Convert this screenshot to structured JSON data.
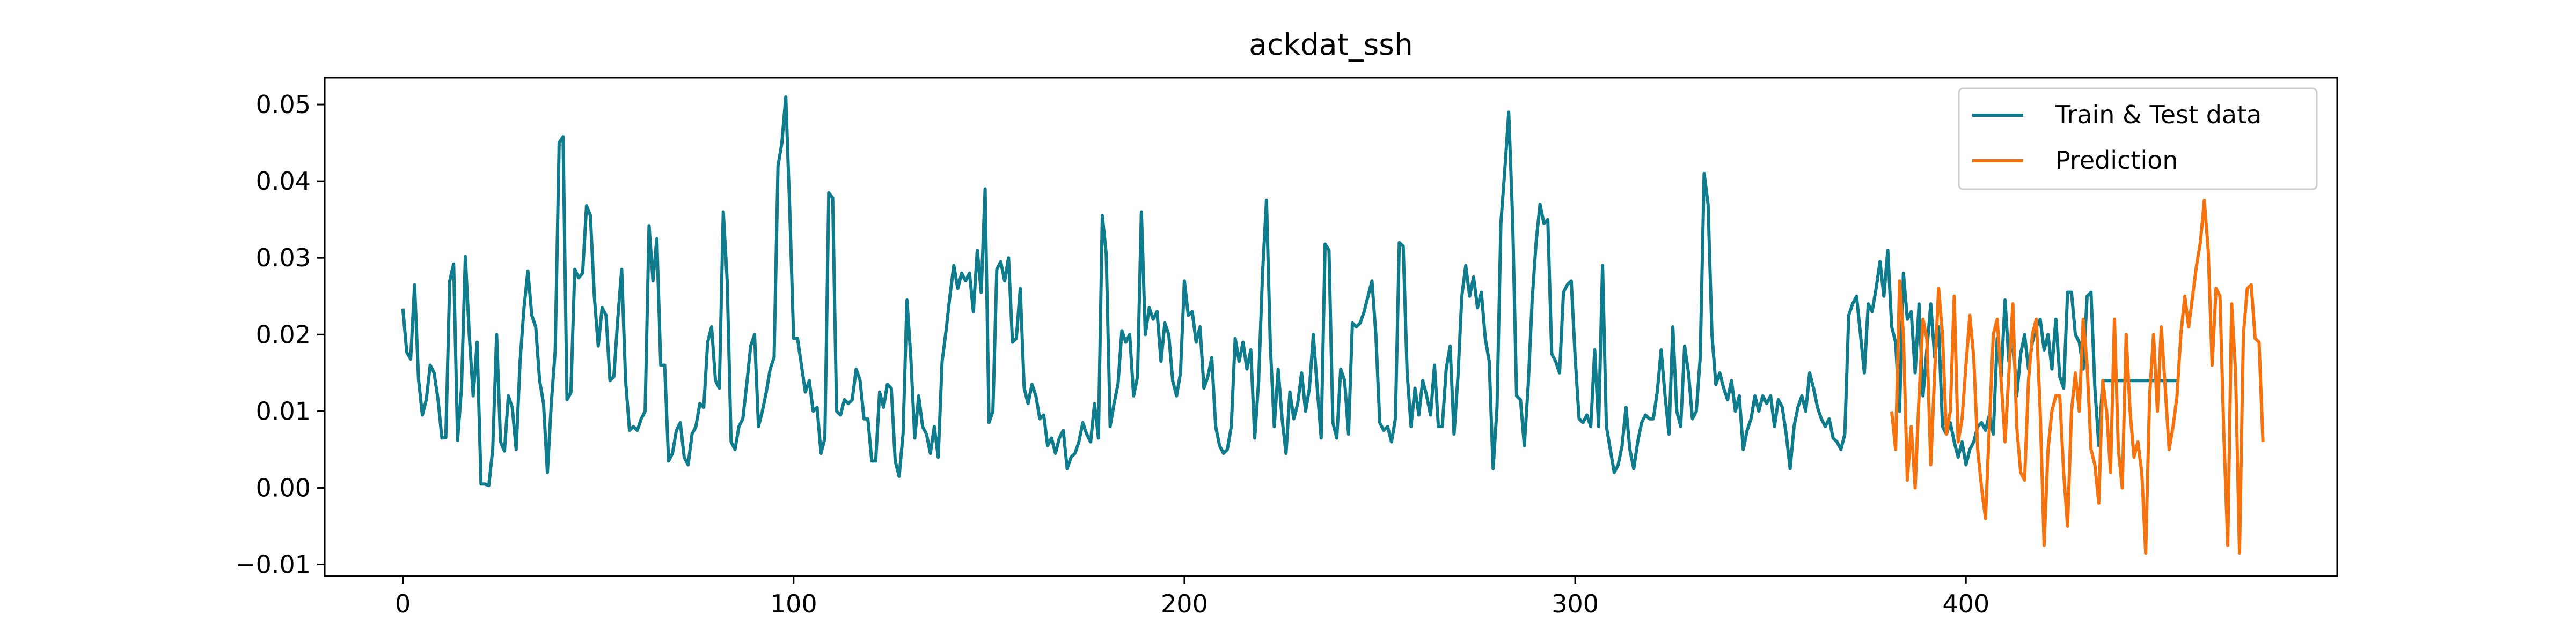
{
  "chart_data": {
    "type": "line",
    "title": "ackdat_ssh",
    "xlabel": "",
    "ylabel": "",
    "xlim": [
      -20,
      495
    ],
    "ylim": [
      -0.0115,
      0.0535
    ],
    "x_ticks": [
      0,
      100,
      200,
      300,
      400
    ],
    "x_tick_labels": [
      "0",
      "100",
      "200",
      "300",
      "400"
    ],
    "y_ticks": [
      -0.01,
      0.0,
      0.01,
      0.02,
      0.03,
      0.04,
      0.05
    ],
    "y_tick_labels": [
      "−0.01",
      "0.00",
      "0.01",
      "0.02",
      "0.03",
      "0.04",
      "0.05"
    ],
    "grid": false,
    "legend_position": "top-right",
    "series": [
      {
        "name": "Train & Test data",
        "color": "#0e7c8c",
        "x_start": 0,
        "values": [
          0.0234,
          0.0177,
          0.0168,
          0.0265,
          0.0142,
          0.0095,
          0.0115,
          0.016,
          0.015,
          0.0115,
          0.0065,
          0.0066,
          0.027,
          0.0292,
          0.0062,
          0.013,
          0.0302,
          0.02,
          0.012,
          0.019,
          0.0005,
          0.0005,
          0.0003,
          0.005,
          0.02,
          0.006,
          0.0048,
          0.012,
          0.0105,
          0.005,
          0.0165,
          0.0235,
          0.0283,
          0.0225,
          0.021,
          0.014,
          0.011,
          0.002,
          0.011,
          0.018,
          0.045,
          0.0458,
          0.0115,
          0.0124,
          0.0285,
          0.0274,
          0.028,
          0.0368,
          0.0355,
          0.025,
          0.0185,
          0.0235,
          0.0225,
          0.014,
          0.0145,
          0.022,
          0.0285,
          0.014,
          0.0075,
          0.008,
          0.0075,
          0.009,
          0.01,
          0.0342,
          0.027,
          0.0325,
          0.016,
          0.016,
          0.0035,
          0.0045,
          0.0075,
          0.0085,
          0.004,
          0.003,
          0.007,
          0.008,
          0.011,
          0.0105,
          0.019,
          0.021,
          0.014,
          0.013,
          0.036,
          0.027,
          0.006,
          0.005,
          0.008,
          0.009,
          0.0135,
          0.0185,
          0.02,
          0.008,
          0.01,
          0.0125,
          0.0155,
          0.017,
          0.042,
          0.045,
          0.051,
          0.0365,
          0.0195,
          0.0195,
          0.016,
          0.0125,
          0.014,
          0.01,
          0.0105,
          0.0045,
          0.0065,
          0.0385,
          0.0378,
          0.01,
          0.0095,
          0.0115,
          0.011,
          0.0115,
          0.0155,
          0.014,
          0.009,
          0.009,
          0.0035,
          0.0035,
          0.0125,
          0.0105,
          0.0135,
          0.013,
          0.0035,
          0.0015,
          0.007,
          0.0245,
          0.017,
          0.0065,
          0.012,
          0.008,
          0.007,
          0.0045,
          0.008,
          0.004,
          0.0165,
          0.0205,
          0.025,
          0.029,
          0.026,
          0.028,
          0.027,
          0.028,
          0.023,
          0.031,
          0.0255,
          0.039,
          0.0085,
          0.01,
          0.0285,
          0.0295,
          0.027,
          0.03,
          0.019,
          0.0195,
          0.026,
          0.013,
          0.011,
          0.0135,
          0.012,
          0.009,
          0.0095,
          0.0055,
          0.0065,
          0.0045,
          0.0065,
          0.0075,
          0.0025,
          0.004,
          0.0045,
          0.006,
          0.0085,
          0.007,
          0.006,
          0.011,
          0.0065,
          0.0355,
          0.0305,
          0.008,
          0.011,
          0.0135,
          0.0205,
          0.019,
          0.02,
          0.012,
          0.0145,
          0.036,
          0.02,
          0.0235,
          0.022,
          0.023,
          0.0165,
          0.0215,
          0.02,
          0.014,
          0.012,
          0.015,
          0.027,
          0.0225,
          0.023,
          0.019,
          0.021,
          0.013,
          0.0145,
          0.017,
          0.008,
          0.0055,
          0.0045,
          0.005,
          0.008,
          0.0195,
          0.0165,
          0.019,
          0.0155,
          0.018,
          0.0065,
          0.014,
          0.028,
          0.0375,
          0.0185,
          0.008,
          0.0155,
          0.009,
          0.0045,
          0.0125,
          0.009,
          0.011,
          0.015,
          0.01,
          0.013,
          0.02,
          0.013,
          0.0065,
          0.0318,
          0.031,
          0.0085,
          0.0065,
          0.0155,
          0.014,
          0.007,
          0.0215,
          0.021,
          0.0215,
          0.023,
          0.025,
          0.027,
          0.02,
          0.0085,
          0.0075,
          0.008,
          0.006,
          0.009,
          0.032,
          0.0315,
          0.015,
          0.008,
          0.013,
          0.0095,
          0.014,
          0.012,
          0.0095,
          0.016,
          0.008,
          0.008,
          0.0155,
          0.0185,
          0.007,
          0.0145,
          0.025,
          0.029,
          0.025,
          0.0275,
          0.0235,
          0.0255,
          0.0195,
          0.0165,
          0.0025,
          0.0105,
          0.0345,
          0.0415,
          0.049,
          0.035,
          0.012,
          0.0115,
          0.0055,
          0.0135,
          0.0245,
          0.032,
          0.037,
          0.0345,
          0.035,
          0.0175,
          0.0165,
          0.015,
          0.0255,
          0.0265,
          0.027,
          0.017,
          0.009,
          0.0085,
          0.0095,
          0.008,
          0.018,
          0.008,
          0.029,
          0.008,
          0.005,
          0.002,
          0.003,
          0.0055,
          0.0105,
          0.005,
          0.0025,
          0.006,
          0.0085,
          0.0095,
          0.009,
          0.009,
          0.0125,
          0.018,
          0.012,
          0.007,
          0.021,
          0.01,
          0.008,
          0.0185,
          0.015,
          0.009,
          0.01,
          0.017,
          0.041,
          0.037,
          0.02,
          0.0135,
          0.015,
          0.013,
          0.0115,
          0.014,
          0.01,
          0.012,
          0.005,
          0.0075,
          0.009,
          0.012,
          0.01,
          0.012,
          0.011,
          0.012,
          0.008,
          0.0115,
          0.0105,
          0.007,
          0.0025,
          0.008,
          0.0105,
          0.012,
          0.01,
          0.015,
          0.013,
          0.0105,
          0.009,
          0.008,
          0.009,
          0.0065,
          0.006,
          0.005,
          0.007,
          0.0225,
          0.024,
          0.025,
          0.02,
          0.015,
          0.024,
          0.023,
          0.026,
          0.0295,
          0.025,
          0.031,
          0.021,
          0.019,
          0.01,
          0.028,
          0.022,
          0.023,
          0.015,
          0.024,
          0.012,
          0.018,
          0.024,
          0.017,
          0.021,
          0.008,
          0.007,
          0.0085,
          0.006,
          0.004,
          0.006,
          0.003,
          0.005,
          0.006,
          0.008,
          0.0085,
          0.0075,
          0.0095,
          0.007,
          0.0195,
          0.0145,
          0.0245,
          0.0165,
          0.02,
          0.012,
          0.0175,
          0.02,
          0.0155,
          0.019,
          0.021,
          0.022,
          0.018,
          0.02,
          0.0155,
          0.022,
          0.0145,
          0.013,
          0.0255,
          0.0255,
          0.02,
          0.019,
          0.0155,
          0.025,
          0.0255,
          0.013,
          0.0055,
          0.014,
          0.014,
          0.014,
          0.014,
          0.014,
          0.014,
          0.014,
          0.014,
          0.014,
          0.014,
          0.014,
          0.014,
          0.014,
          0.014,
          0.014,
          0.014,
          0.014,
          0.014,
          0.014,
          0.014
        ]
      },
      {
        "name": "Prediction",
        "color": "#f5730f",
        "x_start": 381,
        "values": [
          0.01,
          0.005,
          0.027,
          0.02,
          0.001,
          0.008,
          0.0,
          0.012,
          0.022,
          0.0195,
          0.003,
          0.015,
          0.026,
          0.02,
          0.007,
          0.01,
          0.025,
          0.006,
          0.009,
          0.016,
          0.0225,
          0.017,
          0.005,
          0.0,
          -0.004,
          0.008,
          0.02,
          0.022,
          0.014,
          0.006,
          0.015,
          0.024,
          0.008,
          0.002,
          0.001,
          0.014,
          0.02,
          0.022,
          0.01,
          -0.0075,
          0.005,
          0.01,
          0.012,
          0.012,
          0.002,
          -0.005,
          0.01,
          0.015,
          0.01,
          0.022,
          0.016,
          0.005,
          0.003,
          -0.002,
          0.014,
          0.01,
          0.002,
          0.022,
          0.005,
          0.0,
          0.02,
          0.01,
          0.004,
          0.006,
          0.002,
          -0.0085,
          0.012,
          0.02,
          0.01,
          0.021,
          0.013,
          0.005,
          0.008,
          0.012,
          0.02,
          0.025,
          0.021,
          0.025,
          0.029,
          0.032,
          0.0375,
          0.031,
          0.016,
          0.026,
          0.025,
          0.007,
          -0.0075,
          0.024,
          0.015,
          -0.0085,
          0.02,
          0.026,
          0.0265,
          0.0195,
          0.019,
          0.006
        ]
      }
    ]
  }
}
